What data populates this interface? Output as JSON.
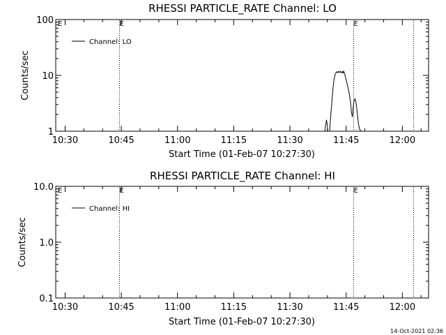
{
  "colors": {
    "background": "#ffffff",
    "foreground": "#000000"
  },
  "footer_timestamp": "14-Oct-2021 02:36",
  "chart_data": [
    {
      "type": "line",
      "title": "RHESSI PARTICLE_RATE Channel: LO",
      "xlabel": "Start Time (01-Feb-07 10:27:30)",
      "ylabel": "Counts/sec",
      "yscale": "log",
      "ylim": [
        1,
        100
      ],
      "xlim": [
        "10:27:30",
        "12:07:00"
      ],
      "x_ticks": [
        "10:30",
        "10:45",
        "11:00",
        "11:15",
        "11:30",
        "11:45",
        "12:00"
      ],
      "y_ticks": [
        "1",
        "10",
        "100"
      ],
      "legend": {
        "position": "top-left",
        "entries": [
          "Channel: LO"
        ]
      },
      "event_lines": [
        {
          "time": "10:44:30",
          "label": "E"
        },
        {
          "time": "11:46:50",
          "label": "E"
        },
        {
          "time": "12:03:00",
          "label": ""
        }
      ],
      "series": [
        {
          "name": "Channel: LO",
          "segments": [
            {
              "x": [
                "11:39:20",
                "11:39:30",
                "11:39:45",
                "11:40:00",
                "11:40:05"
              ],
              "y": [
                1.0,
                1.25,
                1.6,
                1.25,
                1.0
              ]
            },
            {
              "x": [
                "11:40:35",
                "11:40:50",
                "11:41:10",
                "11:41:30",
                "11:41:45",
                "11:42:00",
                "11:42:15",
                "11:42:30",
                "11:42:45",
                "11:43:00",
                "11:43:15",
                "11:43:30",
                "11:43:45",
                "11:44:00",
                "11:44:10",
                "11:44:20",
                "11:44:35",
                "11:44:50",
                "11:45:10",
                "11:45:30",
                "11:45:50",
                "11:46:10",
                "11:46:25",
                "11:46:40",
                "11:46:55",
                "11:47:05",
                "11:47:20",
                "11:47:35",
                "11:47:50",
                "11:48:05",
                "11:48:20",
                "11:48:35",
                "11:48:50",
                "11:49:00"
              ],
              "y": [
                1.0,
                1.7,
                3.2,
                6.0,
                8.3,
                10.0,
                11.0,
                11.6,
                11.2,
                11.8,
                11.3,
                11.8,
                11.1,
                11.7,
                11.0,
                11.9,
                10.8,
                9.2,
                7.5,
                6.0,
                4.7,
                3.3,
                2.2,
                1.8,
                2.8,
                3.4,
                3.8,
                3.4,
                2.6,
                1.8,
                1.3,
                1.1,
                1.02,
                1.0
              ]
            }
          ]
        }
      ]
    },
    {
      "type": "line",
      "title": "RHESSI PARTICLE_RATE Channel: HI",
      "xlabel": "Start Time (01-Feb-07 10:27:30)",
      "ylabel": "Counts/sec",
      "yscale": "log",
      "ylim": [
        0.1,
        10
      ],
      "xlim": [
        "10:27:30",
        "12:07:00"
      ],
      "x_ticks": [
        "10:30",
        "10:45",
        "11:00",
        "11:15",
        "11:30",
        "11:45",
        "12:00"
      ],
      "y_ticks": [
        "0.1",
        "1.0",
        "10.0"
      ],
      "legend": {
        "position": "top-left",
        "entries": [
          "Channel: HI"
        ]
      },
      "event_lines": [
        {
          "time": "10:44:30",
          "label": "E"
        },
        {
          "time": "11:46:50",
          "label": "E"
        },
        {
          "time": "12:03:00",
          "label": ""
        }
      ],
      "series": [
        {
          "name": "Channel: HI",
          "segments": []
        }
      ]
    }
  ]
}
